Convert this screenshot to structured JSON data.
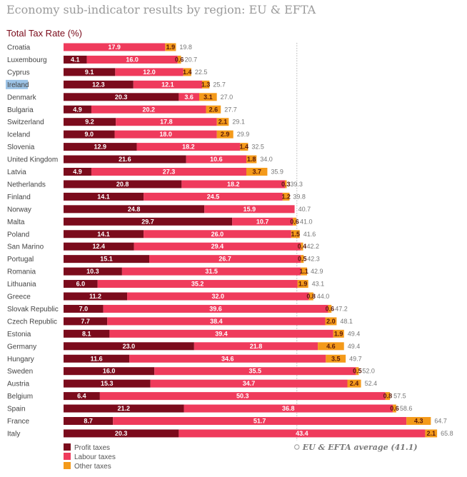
{
  "header": {
    "title": "Economy sub-indicator results by region: EU & EFTA",
    "subtitle": "Total Tax Rate (%)"
  },
  "chart_data": {
    "type": "bar",
    "orientation": "horizontal",
    "stacked": true,
    "categories": [
      "Croatia",
      "Luxembourg",
      "Cyprus",
      "Ireland",
      "Denmark",
      "Bulgaria",
      "Switzerland",
      "Iceland",
      "Slovenia",
      "United Kingdom",
      "Latvia",
      "Netherlands",
      "Finland",
      "Norway",
      "Malta",
      "Poland",
      "San Marino",
      "Portugal",
      "Romania",
      "Lithuania",
      "Greece",
      "Slovak Republic",
      "Czech Republic",
      "Estonia",
      "Germany",
      "Hungary",
      "Sweden",
      "Austria",
      "Belgium",
      "Spain",
      "France",
      "Italy"
    ],
    "series": [
      {
        "name": "Profit taxes",
        "color": "#7b0b1c",
        "values": [
          0.0,
          4.1,
          9.1,
          12.3,
          20.3,
          4.9,
          9.2,
          9.0,
          12.9,
          21.6,
          4.9,
          20.8,
          14.1,
          24.8,
          29.7,
          14.1,
          12.4,
          15.1,
          10.3,
          6.0,
          11.2,
          7.0,
          7.7,
          8.1,
          23.0,
          11.6,
          16.0,
          15.3,
          6.4,
          21.2,
          8.7,
          20.3
        ]
      },
      {
        "name": "Labour taxes",
        "color": "#ef3b5c",
        "values": [
          17.9,
          16.0,
          12.0,
          12.1,
          3.6,
          20.2,
          17.8,
          18.0,
          18.2,
          10.6,
          27.3,
          18.2,
          24.5,
          15.9,
          10.7,
          26.0,
          29.4,
          26.7,
          31.5,
          35.2,
          32.0,
          39.6,
          38.4,
          39.4,
          21.8,
          34.6,
          35.5,
          34.7,
          50.3,
          36.8,
          51.7,
          43.4
        ]
      },
      {
        "name": "Other taxes",
        "color": "#f49a1a",
        "values": [
          1.9,
          0.6,
          1.4,
          1.3,
          3.1,
          2.6,
          2.1,
          2.9,
          1.4,
          1.8,
          3.7,
          0.3,
          1.2,
          0.0,
          0.6,
          1.5,
          0.4,
          0.5,
          1.1,
          1.9,
          0.8,
          0.6,
          2.0,
          1.9,
          4.6,
          3.5,
          0.5,
          2.4,
          0.8,
          0.6,
          4.3,
          2.1
        ]
      }
    ],
    "totals": [
      19.8,
      20.7,
      22.5,
      25.7,
      27.0,
      27.7,
      29.1,
      29.9,
      32.5,
      34.0,
      35.9,
      39.3,
      39.8,
      40.7,
      41.0,
      41.6,
      42.2,
      42.3,
      42.9,
      43.1,
      44.0,
      47.2,
      48.1,
      49.4,
      49.4,
      49.7,
      52.0,
      52.4,
      57.5,
      58.6,
      64.7,
      65.8
    ],
    "segment_labels": [
      [
        "",
        "17.9",
        "1.9"
      ],
      [
        "4.1",
        "16.0",
        "0.6"
      ],
      [
        "9.1",
        "12.0",
        "1.4"
      ],
      [
        "12.3",
        "12.1",
        "1.3"
      ],
      [
        "20.3",
        "3.6",
        "3.1"
      ],
      [
        "4.9",
        "20.2",
        "2.6"
      ],
      [
        "9.2",
        "17.8",
        "2.1"
      ],
      [
        "9.0",
        "18.0",
        "2.9"
      ],
      [
        "12.9",
        "18.2",
        "1.4"
      ],
      [
        "21.6",
        "10.6",
        "1.8"
      ],
      [
        "4.9",
        "27.3",
        "3.7"
      ],
      [
        "20.8",
        "18.2",
        "0.3"
      ],
      [
        "14.1",
        "24.5",
        "1.2"
      ],
      [
        "24.8",
        "15.9",
        ""
      ],
      [
        "29.7",
        "10.7",
        "0.6"
      ],
      [
        "14.1",
        "26.0",
        "1.5"
      ],
      [
        "12.4",
        "29.4",
        "0.4"
      ],
      [
        "15.1",
        "26.7",
        "0.5"
      ],
      [
        "10.3",
        "31.5",
        "1.1"
      ],
      [
        "6.0",
        "35.2",
        "1.9"
      ],
      [
        "11.2",
        "32.0",
        "0.8"
      ],
      [
        "7.0",
        "39.6",
        "0.6"
      ],
      [
        "7.7",
        "38.4",
        "2.0"
      ],
      [
        "8.1",
        "39.4",
        "1.9"
      ],
      [
        "23.0",
        "21.8",
        "4.6"
      ],
      [
        "11.6",
        "34.6",
        "3.5"
      ],
      [
        "16.0",
        "35.5",
        "0.5"
      ],
      [
        "15.3",
        "34.7",
        "2.4"
      ],
      [
        "6.4",
        "50.3",
        "0.8"
      ],
      [
        "21.2",
        "36.8",
        "0.6"
      ],
      [
        "8.7",
        "51.7",
        "4.3"
      ],
      [
        "20.3",
        "43.4",
        "2.1"
      ]
    ],
    "highlighted_category": "Ireland",
    "reference_line": {
      "value": 41.1,
      "label": "EU & EFTA average (41.1)",
      "style": "dotted"
    },
    "xlim": [
      0,
      70
    ],
    "legend_position": "bottom-left",
    "grid": false
  }
}
